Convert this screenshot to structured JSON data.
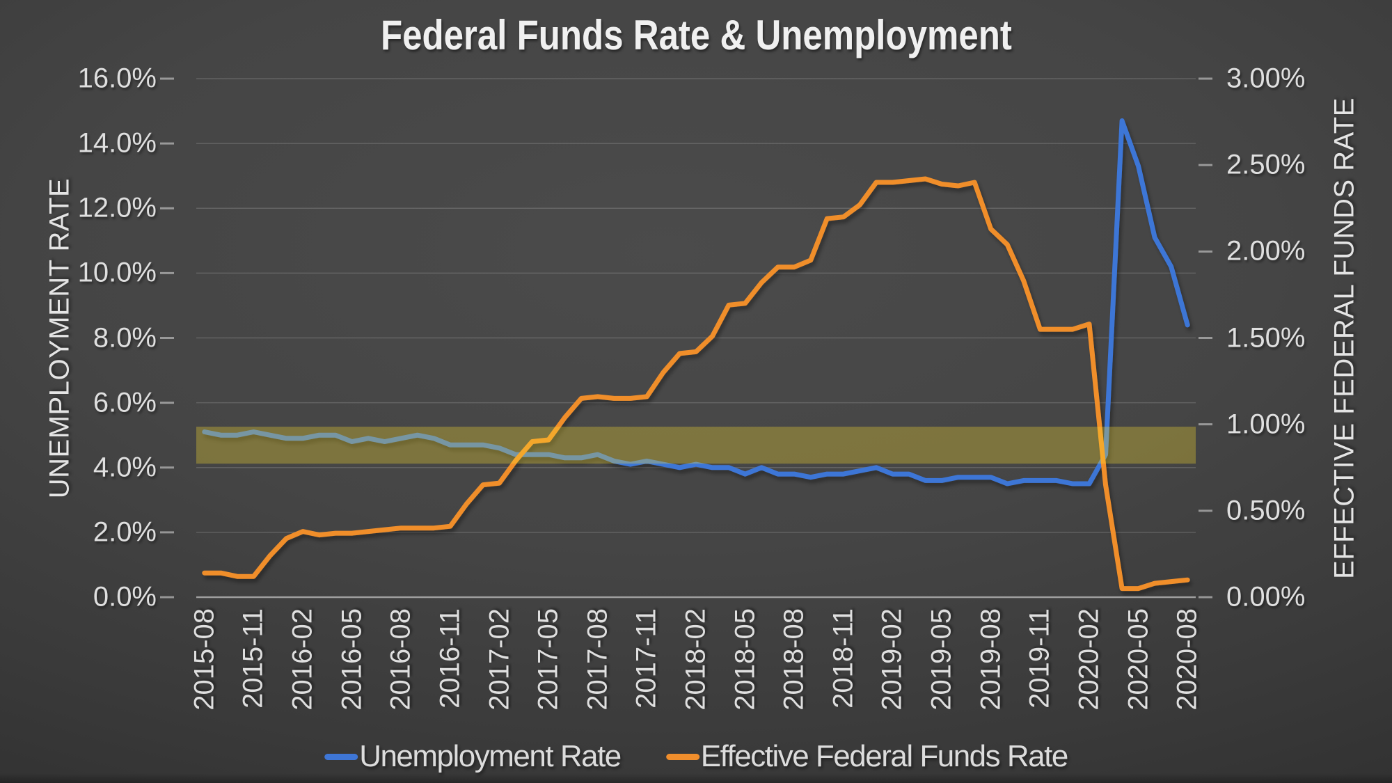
{
  "title": "Federal Funds Rate & Unemployment",
  "left_axis": {
    "title": "UNEMPLOYMENT RATE",
    "tick_labels": [
      "16.0%",
      "14.0%",
      "12.0%",
      "10.0%",
      "8.0%",
      "6.0%",
      "4.0%",
      "2.0%",
      "0.0%"
    ],
    "min": 0,
    "max": 16
  },
  "right_axis": {
    "title": "EFFECTIVE FEDERAL FUNDS RATE",
    "tick_labels": [
      "3.00%",
      "2.50%",
      "2.00%",
      "1.50%",
      "1.00%",
      "0.50%",
      "0.00%"
    ],
    "min": 0,
    "max": 3
  },
  "x_axis": {
    "tick_labels": [
      "2015-08",
      "2015-11",
      "2016-02",
      "2016-05",
      "2016-08",
      "2016-11",
      "2017-02",
      "2017-05",
      "2017-08",
      "2017-11",
      "2018-02",
      "2018-05",
      "2018-08",
      "2018-11",
      "2019-02",
      "2019-05",
      "2019-08",
      "2019-11",
      "2020-02",
      "2020-05",
      "2020-08"
    ]
  },
  "legend": [
    {
      "label": "Unemployment Rate",
      "color": "#3E76D6"
    },
    {
      "label": "Effective Federal Funds Rate",
      "color": "#F08E2C"
    }
  ],
  "colors": {
    "background_center": "#4b4b4b",
    "background_edge": "#292929",
    "gridline": "rgba(255,255,255,0.16)",
    "axis_line": "#9e9e9e",
    "tick_mark": "rgba(255,255,255,0.45)",
    "label_text": "#dfdfdf",
    "title_text": "#f0f0f0",
    "unemployment_line": "#3E76D6",
    "effr_line": "#F08E2C",
    "highlight_band": "rgba(255,224,48,0.30)"
  },
  "chart_data": {
    "type": "line",
    "x": [
      "2015-08",
      "2015-09",
      "2015-10",
      "2015-11",
      "2015-12",
      "2016-01",
      "2016-02",
      "2016-03",
      "2016-04",
      "2016-05",
      "2016-06",
      "2016-07",
      "2016-08",
      "2016-09",
      "2016-10",
      "2016-11",
      "2016-12",
      "2017-01",
      "2017-02",
      "2017-03",
      "2017-04",
      "2017-05",
      "2017-06",
      "2017-07",
      "2017-08",
      "2017-09",
      "2017-10",
      "2017-11",
      "2017-12",
      "2018-01",
      "2018-02",
      "2018-03",
      "2018-04",
      "2018-05",
      "2018-06",
      "2018-07",
      "2018-08",
      "2018-09",
      "2018-10",
      "2018-11",
      "2018-12",
      "2019-01",
      "2019-02",
      "2019-03",
      "2019-04",
      "2019-05",
      "2019-06",
      "2019-07",
      "2019-08",
      "2019-09",
      "2019-10",
      "2019-11",
      "2019-12",
      "2020-01",
      "2020-02",
      "2020-03",
      "2020-04",
      "2020-05",
      "2020-06",
      "2020-07",
      "2020-08"
    ],
    "x_tick_every": 3,
    "series": [
      {
        "name": "Unemployment Rate",
        "axis": "left",
        "unit": "%",
        "color": "#3E76D6",
        "values": [
          5.1,
          5.0,
          5.0,
          5.1,
          5.0,
          4.9,
          4.9,
          5.0,
          5.0,
          4.8,
          4.9,
          4.8,
          4.9,
          5.0,
          4.9,
          4.7,
          4.7,
          4.7,
          4.6,
          4.4,
          4.4,
          4.4,
          4.3,
          4.3,
          4.4,
          4.2,
          4.1,
          4.2,
          4.1,
          4.0,
          4.1,
          4.0,
          4.0,
          3.8,
          4.0,
          3.8,
          3.8,
          3.7,
          3.8,
          3.8,
          3.9,
          4.0,
          3.8,
          3.8,
          3.6,
          3.6,
          3.7,
          3.7,
          3.7,
          3.5,
          3.6,
          3.6,
          3.6,
          3.5,
          3.5,
          4.4,
          14.7,
          13.3,
          11.1,
          10.2,
          8.4
        ]
      },
      {
        "name": "Effective Federal Funds Rate",
        "axis": "right",
        "unit": "%",
        "color": "#F08E2C",
        "values": [
          0.14,
          0.14,
          0.12,
          0.12,
          0.24,
          0.34,
          0.38,
          0.36,
          0.37,
          0.37,
          0.38,
          0.39,
          0.4,
          0.4,
          0.4,
          0.41,
          0.54,
          0.65,
          0.66,
          0.79,
          0.9,
          0.91,
          1.04,
          1.15,
          1.16,
          1.15,
          1.15,
          1.16,
          1.3,
          1.41,
          1.42,
          1.51,
          1.69,
          1.7,
          1.82,
          1.91,
          1.91,
          1.95,
          2.19,
          2.2,
          2.27,
          2.4,
          2.4,
          2.41,
          2.42,
          2.39,
          2.38,
          2.4,
          2.13,
          2.04,
          1.83,
          1.55,
          1.55,
          1.55,
          1.58,
          0.65,
          0.05,
          0.05,
          0.08,
          0.09,
          0.1
        ]
      }
    ],
    "highlight_band": {
      "axis": "left",
      "from": 4.12,
      "to": 5.26,
      "color": "rgba(255,224,48,0.30)"
    },
    "left_ylim": [
      0,
      16
    ],
    "right_ylim": [
      0,
      3
    ],
    "left_tick_step": 2,
    "right_tick_step": 0.5,
    "grid": "horizontal",
    "legend_position": "bottom"
  }
}
